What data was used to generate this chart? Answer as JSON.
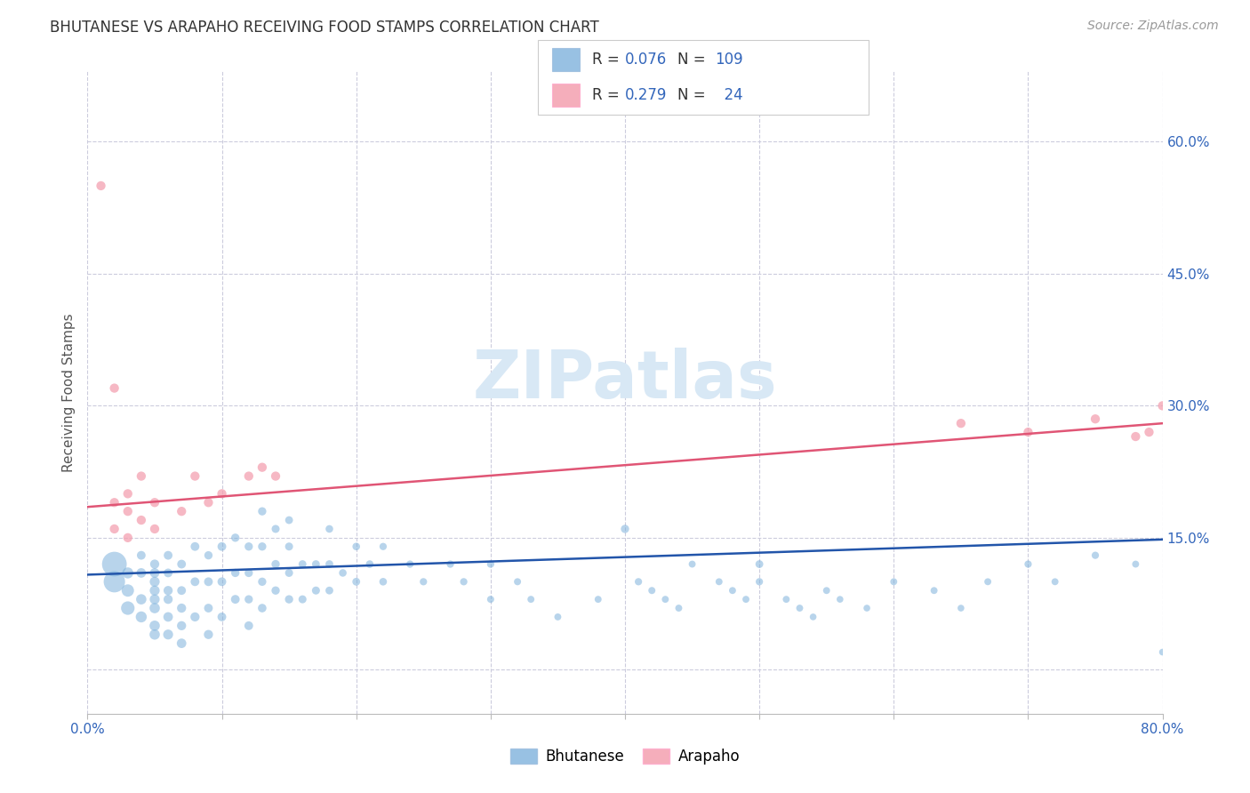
{
  "title": "BHUTANESE VS ARAPAHO RECEIVING FOOD STAMPS CORRELATION CHART",
  "source": "Source: ZipAtlas.com",
  "ylabel": "Receiving Food Stamps",
  "xlim": [
    0.0,
    0.8
  ],
  "ylim": [
    -0.05,
    0.68
  ],
  "yticks": [
    0.0,
    0.15,
    0.3,
    0.45,
    0.6
  ],
  "xticks": [
    0.0,
    0.1,
    0.2,
    0.3,
    0.4,
    0.5,
    0.6,
    0.7,
    0.8
  ],
  "xtick_labels": [
    "0.0%",
    "",
    "",
    "",
    "",
    "",
    "",
    "",
    "80.0%"
  ],
  "ytick_labels_right": [
    "",
    "15.0%",
    "30.0%",
    "45.0%",
    "60.0%"
  ],
  "blue_color": "#7EB2DC",
  "pink_color": "#F4A0B0",
  "line_blue": "#2255AA",
  "line_pink": "#E05575",
  "bg_color": "#FFFFFF",
  "grid_color": "#CCCCDD",
  "axis_tick_color": "#3366BB",
  "legend_R_blue": "0.076",
  "legend_N_blue": "109",
  "legend_R_pink": "0.279",
  "legend_N_pink": "24",
  "legend_label_blue": "Bhutanese",
  "legend_label_pink": "Arapaho",
  "blue_trendline_x": [
    0.0,
    0.8
  ],
  "blue_trendline_y": [
    0.108,
    0.148
  ],
  "pink_trendline_x": [
    0.0,
    0.8
  ],
  "pink_trendline_y": [
    0.185,
    0.28
  ],
  "blue_scatter_x": [
    0.02,
    0.02,
    0.03,
    0.03,
    0.03,
    0.04,
    0.04,
    0.04,
    0.04,
    0.05,
    0.05,
    0.05,
    0.05,
    0.05,
    0.05,
    0.05,
    0.05,
    0.06,
    0.06,
    0.06,
    0.06,
    0.06,
    0.06,
    0.07,
    0.07,
    0.07,
    0.07,
    0.07,
    0.08,
    0.08,
    0.08,
    0.09,
    0.09,
    0.09,
    0.09,
    0.1,
    0.1,
    0.1,
    0.11,
    0.11,
    0.11,
    0.12,
    0.12,
    0.12,
    0.12,
    0.13,
    0.13,
    0.13,
    0.13,
    0.14,
    0.14,
    0.14,
    0.15,
    0.15,
    0.15,
    0.15,
    0.16,
    0.16,
    0.17,
    0.17,
    0.18,
    0.18,
    0.18,
    0.19,
    0.2,
    0.2,
    0.21,
    0.22,
    0.22,
    0.24,
    0.25,
    0.27,
    0.28,
    0.3,
    0.3,
    0.32,
    0.33,
    0.35,
    0.38,
    0.4,
    0.41,
    0.42,
    0.43,
    0.44,
    0.45,
    0.47,
    0.48,
    0.49,
    0.5,
    0.5,
    0.52,
    0.53,
    0.54,
    0.55,
    0.56,
    0.58,
    0.6,
    0.63,
    0.65,
    0.67,
    0.7,
    0.72,
    0.75,
    0.78,
    0.8
  ],
  "blue_scatter_y": [
    0.12,
    0.1,
    0.07,
    0.09,
    0.11,
    0.06,
    0.08,
    0.11,
    0.13,
    0.04,
    0.05,
    0.07,
    0.08,
    0.09,
    0.1,
    0.11,
    0.12,
    0.04,
    0.06,
    0.08,
    0.09,
    0.11,
    0.13,
    0.03,
    0.05,
    0.07,
    0.09,
    0.12,
    0.06,
    0.1,
    0.14,
    0.04,
    0.07,
    0.1,
    0.13,
    0.06,
    0.1,
    0.14,
    0.08,
    0.11,
    0.15,
    0.05,
    0.08,
    0.11,
    0.14,
    0.07,
    0.1,
    0.14,
    0.18,
    0.09,
    0.12,
    0.16,
    0.08,
    0.11,
    0.14,
    0.17,
    0.08,
    0.12,
    0.09,
    0.12,
    0.09,
    0.12,
    0.16,
    0.11,
    0.1,
    0.14,
    0.12,
    0.1,
    0.14,
    0.12,
    0.1,
    0.12,
    0.1,
    0.12,
    0.08,
    0.1,
    0.08,
    0.06,
    0.08,
    0.16,
    0.1,
    0.09,
    0.08,
    0.07,
    0.12,
    0.1,
    0.09,
    0.08,
    0.12,
    0.1,
    0.08,
    0.07,
    0.06,
    0.09,
    0.08,
    0.07,
    0.1,
    0.09,
    0.07,
    0.1,
    0.12,
    0.1,
    0.13,
    0.12,
    0.02
  ],
  "blue_scatter_size": [
    400,
    300,
    120,
    100,
    80,
    80,
    70,
    60,
    50,
    70,
    70,
    70,
    65,
    65,
    65,
    60,
    55,
    65,
    60,
    55,
    55,
    50,
    50,
    60,
    55,
    55,
    50,
    50,
    55,
    50,
    50,
    55,
    50,
    50,
    45,
    50,
    50,
    50,
    50,
    45,
    45,
    50,
    45,
    45,
    45,
    48,
    45,
    45,
    45,
    45,
    45,
    42,
    45,
    42,
    42,
    40,
    42,
    40,
    42,
    40,
    40,
    40,
    38,
    38,
    40,
    38,
    38,
    38,
    35,
    35,
    35,
    35,
    35,
    35,
    33,
    33,
    32,
    32,
    32,
    45,
    35,
    33,
    32,
    32,
    32,
    32,
    32,
    32,
    40,
    35,
    32,
    32,
    30,
    32,
    30,
    30,
    32,
    32,
    30,
    32,
    35,
    32,
    35,
    32,
    30
  ],
  "pink_scatter_x": [
    0.01,
    0.02,
    0.02,
    0.02,
    0.03,
    0.03,
    0.03,
    0.04,
    0.04,
    0.05,
    0.05,
    0.07,
    0.08,
    0.09,
    0.1,
    0.12,
    0.13,
    0.14,
    0.65,
    0.7,
    0.75,
    0.78,
    0.79,
    0.8
  ],
  "pink_scatter_y": [
    0.55,
    0.32,
    0.19,
    0.16,
    0.2,
    0.18,
    0.15,
    0.17,
    0.22,
    0.19,
    0.16,
    0.18,
    0.22,
    0.19,
    0.2,
    0.22,
    0.23,
    0.22,
    0.28,
    0.27,
    0.285,
    0.265,
    0.27,
    0.3
  ],
  "pink_scatter_size": [
    55,
    55,
    55,
    55,
    55,
    55,
    55,
    55,
    55,
    55,
    55,
    55,
    55,
    55,
    55,
    55,
    55,
    55,
    55,
    55,
    55,
    55,
    55,
    55
  ],
  "title_fontsize": 12,
  "source_fontsize": 10,
  "tick_fontsize": 11,
  "legend_fontsize": 12
}
